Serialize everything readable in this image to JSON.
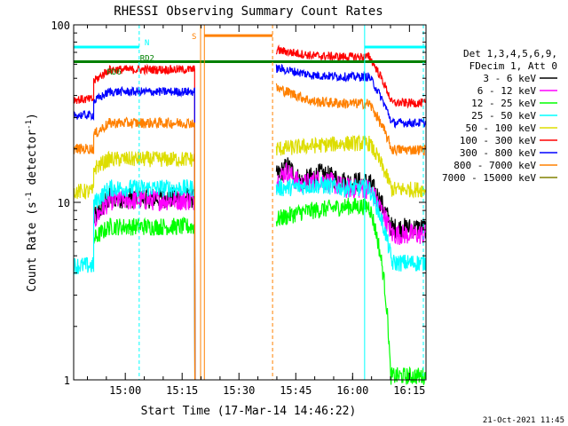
{
  "chart_data": {
    "type": "line",
    "title": "RHESSI Observing Summary Count Rates",
    "xlabel": "Start Time (17-Mar-14 14:46:22)",
    "ylabel_main": "Count Rate (s",
    "ylabel_sup1": "-1",
    "ylabel_mid": " detector",
    "ylabel_sup2": "-1",
    "ylabel_end": ")",
    "yscale": "log",
    "ylim": [
      1,
      100
    ],
    "xlim_minutes": [
      0,
      93
    ],
    "x_ticks": [
      {
        "label": "15:00",
        "minute": 13.63
      },
      {
        "label": "15:15",
        "minute": 28.63
      },
      {
        "label": "15:30",
        "minute": 43.63
      },
      {
        "label": "15:45",
        "minute": 58.63
      },
      {
        "label": "16:00",
        "minute": 73.63
      },
      {
        "label": "16:15",
        "minute": 88.63
      }
    ],
    "y_ticks": [
      {
        "label": "1",
        "value": 1
      },
      {
        "label": "10",
        "value": 10
      },
      {
        "label": "100",
        "value": 100
      }
    ],
    "legend_header": [
      "Det 1,3,4,5,6,9,",
      "FDecim 1, Att 0"
    ],
    "legend_position": "right",
    "series": [
      {
        "name": "3 - 6 keV",
        "color": "#000000",
        "night": 10.6,
        "flare": [
          {
            "t": 53.5,
            "v": 14.0
          },
          {
            "t": 56.5,
            "v": 16.0
          },
          {
            "t": 60,
            "v": 13.0
          },
          {
            "t": 65,
            "v": 14.5
          },
          {
            "t": 72,
            "v": 13.0
          }
        ]
      },
      {
        "name": "6 - 12 keV",
        "color": "#ff00ff",
        "night": 10.3,
        "flare": [
          {
            "t": 53.5,
            "v": 13.0
          },
          {
            "t": 56,
            "v": 15.0
          },
          {
            "t": 60,
            "v": 12.5
          },
          {
            "t": 65,
            "v": 13.5
          },
          {
            "t": 72,
            "v": 12.0
          }
        ]
      },
      {
        "name": "12 - 25 keV",
        "color": "#00ff00",
        "night": 7.3,
        "flare": [
          {
            "t": 53.5,
            "v": 8.0
          },
          {
            "t": 60,
            "v": 8.8
          },
          {
            "t": 72,
            "v": 9.5
          }
        ]
      },
      {
        "name": "25 - 50 keV",
        "color": "#00ffff",
        "night": 12.0,
        "flare": [
          {
            "t": 53.5,
            "v": 12.0
          },
          {
            "t": 65,
            "v": 12.5
          },
          {
            "t": 72,
            "v": 12.0
          }
        ]
      },
      {
        "name": "50 - 100 keV",
        "color": "#dddd00",
        "night": 17.5,
        "flare": [
          {
            "t": 53.5,
            "v": 20.0
          },
          {
            "t": 65,
            "v": 21.0
          },
          {
            "t": 72,
            "v": 21.5
          }
        ]
      },
      {
        "name": "100 - 300 keV",
        "color": "#ff0000",
        "night": 56.0,
        "flare": [
          {
            "t": 53.5,
            "v": 72.0
          },
          {
            "t": 63,
            "v": 67.0
          },
          {
            "t": 72,
            "v": 66.0
          }
        ]
      },
      {
        "name": "300 - 800 keV",
        "color": "#0000ff",
        "night": 42.0,
        "flare": [
          {
            "t": 53.5,
            "v": 57.0
          },
          {
            "t": 63,
            "v": 52.0
          },
          {
            "t": 72,
            "v": 51.0
          }
        ]
      },
      {
        "name": "800 - 7000 keV",
        "color": "#ff8000",
        "night": 28.0,
        "flare": [
          {
            "t": 53.5,
            "v": 44.0
          },
          {
            "t": 63,
            "v": 37.0
          },
          {
            "t": 72,
            "v": 36.0
          }
        ]
      },
      {
        "name": "7000 - 15000 keV",
        "color": "#808000",
        "night": null,
        "flare": []
      }
    ],
    "pre_night": {
      "3 - 6 keV": {
        "before": null,
        "start": 5.3,
        "end": 9.5,
        "from": 8.0,
        "to": 10.6
      },
      "6 - 12 keV": {
        "before": null,
        "start": 5.3,
        "end": 9.5,
        "from": 7.8,
        "to": 10.3
      },
      "12 - 25 keV": {
        "before": null,
        "start": 5.3,
        "end": 9.5,
        "from": 6.2,
        "to": 7.3
      },
      "25 - 50 keV": {
        "before": 4.4,
        "start": 5.3,
        "end": 9.5,
        "from": 9.8,
        "to": 12.0
      },
      "50 - 100 keV": {
        "before": 11.5,
        "start": 5.3,
        "end": 9.5,
        "from": 15.5,
        "to": 17.5
      },
      "100 - 300 keV": {
        "before": 38.0,
        "start": 5.3,
        "end": 9.5,
        "from": 48.0,
        "to": 56.0
      },
      "300 - 800 keV": {
        "before": 31.0,
        "start": 5.3,
        "end": 9.5,
        "from": 37.0,
        "to": 42.0
      },
      "800 - 7000 keV": {
        "before": 20.0,
        "start": 5.3,
        "end": 9.5,
        "from": 24.0,
        "to": 28.0
      }
    },
    "annotations": {
      "N": {
        "label": "N",
        "minute": 17.3
      },
      "S": {
        "label": "S",
        "minute": 33.5
      },
      "RD6": {
        "label": "RD6"
      },
      "RD2": {
        "label": "RD2"
      }
    },
    "timestamp": "21-Oct-2021 11:45"
  }
}
